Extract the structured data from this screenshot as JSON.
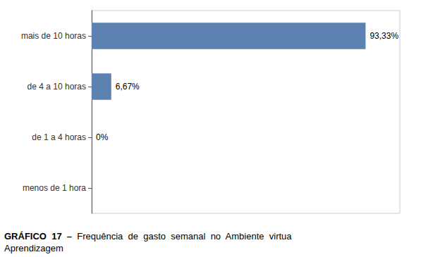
{
  "chart_data": {
    "type": "bar",
    "orientation": "horizontal",
    "title": "GRÁFICO  17  –",
    "subtitle": "  Frequência  de  gasto  semanal  no  Ambiente  virtua\nAprendizagem",
    "categories": [
      "mais de 10 horas",
      "de 4 a 10 horas",
      "de 1 a 4 horas",
      "menos de 1 hora"
    ],
    "values": [
      93.33,
      6.67,
      0,
      0
    ],
    "value_labels": [
      "93,33%",
      "6,67%",
      "0%",
      null
    ],
    "data_labels": true,
    "color": "#5b82b0",
    "xlim": [
      0,
      105
    ],
    "grid": false,
    "tick_labels": "y"
  }
}
